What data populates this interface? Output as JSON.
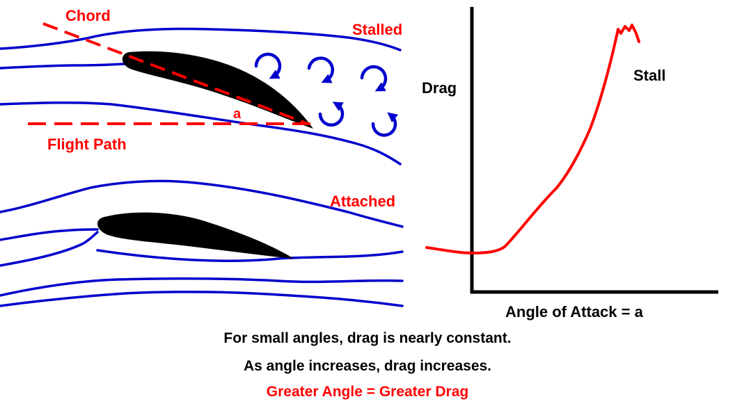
{
  "colors": {
    "streamline": "#0000cc",
    "accent": "#ff0000",
    "airfoil": "#000000",
    "axis": "#000000",
    "text": "#000000",
    "background": "#ffffff"
  },
  "stalled_panel": {
    "chord_label": "Chord",
    "stalled_label": "Stalled",
    "angle_label": "a",
    "flight_path_label": "Flight Path",
    "vortex_icon": "circular-arrow-icon"
  },
  "attached_panel": {
    "attached_label": "Attached"
  },
  "graph": {
    "y_label": "Drag",
    "x_label": "Angle  of  Attack = a",
    "stall_label": "Stall"
  },
  "caption": {
    "line1": "For  small  angles,  drag is  nearly constant.",
    "line2": "As  angle increases,  drag increases.",
    "line3": "Greater  Angle  =  Greater  Drag"
  }
}
